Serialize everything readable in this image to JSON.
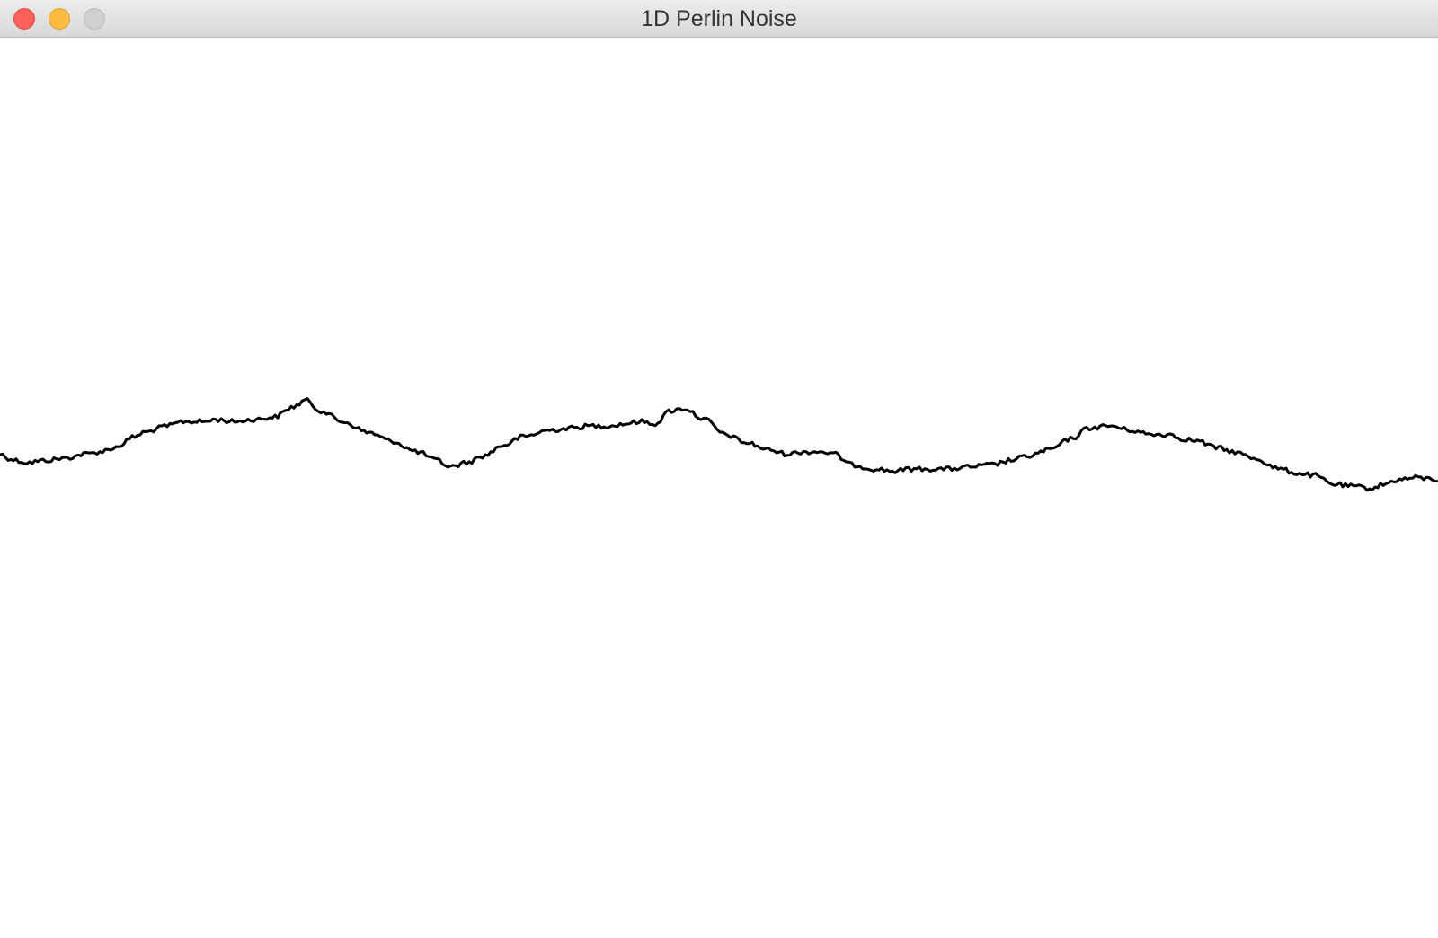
{
  "window": {
    "title": "1D Perlin Noise",
    "controls": {
      "close_color": "#fc605b",
      "minimize_color": "#fdbc40",
      "zoom_color": "#d0d0d0"
    }
  },
  "canvas": {
    "background": "#ffffff",
    "stroke_color": "#000000",
    "noise_profile": [
      [
        0,
        0.47
      ],
      [
        0.006,
        0.45
      ],
      [
        0.011,
        0.44
      ],
      [
        0.019,
        0.43
      ],
      [
        0.032,
        0.44
      ],
      [
        0.045,
        0.45
      ],
      [
        0.06,
        0.47
      ],
      [
        0.07,
        0.48
      ],
      [
        0.08,
        0.5
      ],
      [
        0.094,
        0.55
      ],
      [
        0.1,
        0.57
      ],
      [
        0.117,
        0.6
      ],
      [
        0.127,
        0.62
      ],
      [
        0.143,
        0.62
      ],
      [
        0.15,
        0.63
      ],
      [
        0.162,
        0.62
      ],
      [
        0.178,
        0.63
      ],
      [
        0.19,
        0.64
      ],
      [
        0.205,
        0.69
      ],
      [
        0.212,
        0.72
      ],
      [
        0.223,
        0.67
      ],
      [
        0.238,
        0.62
      ],
      [
        0.256,
        0.57
      ],
      [
        0.272,
        0.53
      ],
      [
        0.29,
        0.48
      ],
      [
        0.304,
        0.44
      ],
      [
        0.313,
        0.41
      ],
      [
        0.325,
        0.43
      ],
      [
        0.336,
        0.46
      ],
      [
        0.35,
        0.51
      ],
      [
        0.364,
        0.55
      ],
      [
        0.382,
        0.58
      ],
      [
        0.398,
        0.59
      ],
      [
        0.41,
        0.6
      ],
      [
        0.424,
        0.6
      ],
      [
        0.435,
        0.61
      ],
      [
        0.445,
        0.62
      ],
      [
        0.456,
        0.61
      ],
      [
        0.466,
        0.67
      ],
      [
        0.476,
        0.68
      ],
      [
        0.49,
        0.63
      ],
      [
        0.504,
        0.56
      ],
      [
        0.52,
        0.52
      ],
      [
        0.534,
        0.49
      ],
      [
        0.547,
        0.47
      ],
      [
        0.56,
        0.48
      ],
      [
        0.571,
        0.48
      ],
      [
        0.58,
        0.47
      ],
      [
        0.592,
        0.42
      ],
      [
        0.608,
        0.4
      ],
      [
        0.622,
        0.39
      ],
      [
        0.633,
        0.4
      ],
      [
        0.647,
        0.4
      ],
      [
        0.66,
        0.4
      ],
      [
        0.675,
        0.41
      ],
      [
        0.69,
        0.42
      ],
      [
        0.703,
        0.44
      ],
      [
        0.715,
        0.46
      ],
      [
        0.73,
        0.49
      ],
      [
        0.745,
        0.54
      ],
      [
        0.757,
        0.59
      ],
      [
        0.772,
        0.6
      ],
      [
        0.786,
        0.58
      ],
      [
        0.8,
        0.56
      ],
      [
        0.814,
        0.56
      ],
      [
        0.822,
        0.54
      ],
      [
        0.833,
        0.53
      ],
      [
        0.845,
        0.5
      ],
      [
        0.858,
        0.48
      ],
      [
        0.872,
        0.45
      ],
      [
        0.89,
        0.4
      ],
      [
        0.902,
        0.38
      ],
      [
        0.914,
        0.37
      ],
      [
        0.927,
        0.33
      ],
      [
        0.94,
        0.32
      ],
      [
        0.953,
        0.31
      ],
      [
        0.963,
        0.33
      ],
      [
        0.972,
        0.35
      ],
      [
        0.985,
        0.36
      ],
      [
        1.0,
        0.35
      ]
    ]
  }
}
